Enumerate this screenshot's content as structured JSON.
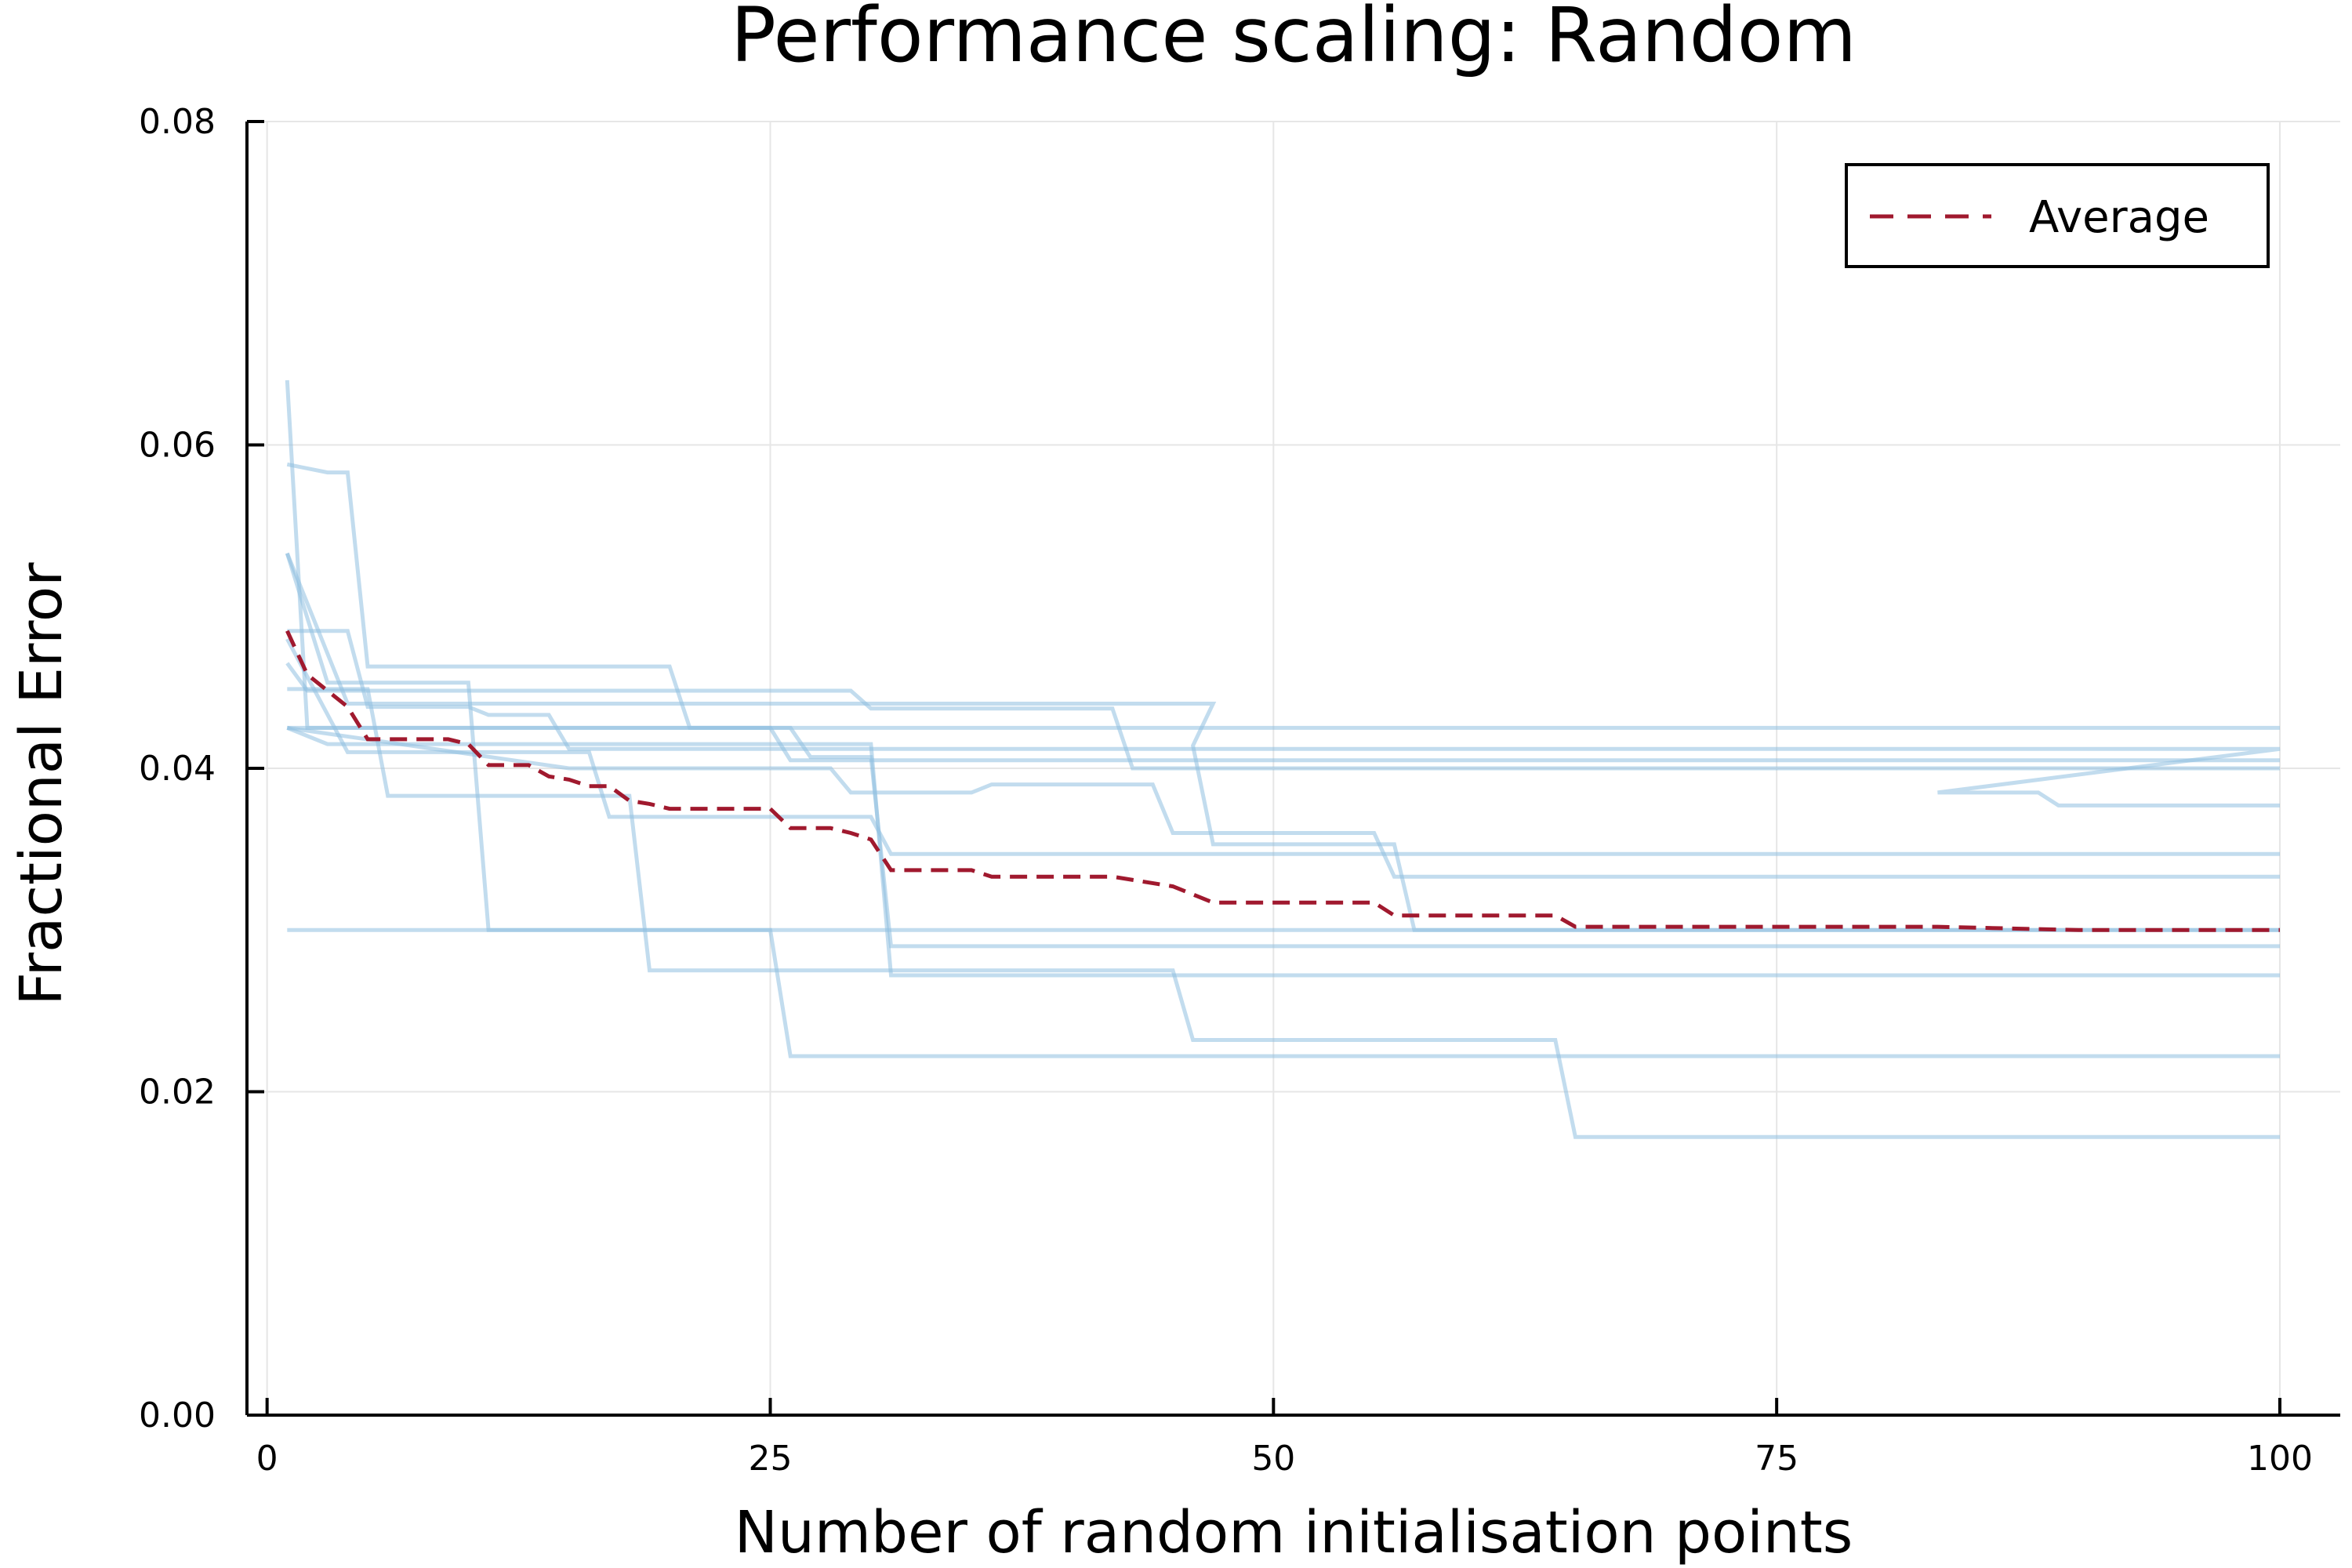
{
  "chart_data": {
    "type": "line",
    "title": "Performance scaling: Random",
    "xlabel": "Number of random initialisation points",
    "ylabel": "Fractional Error",
    "xlim": [
      -1,
      103
    ],
    "ylim": [
      0,
      0.08
    ],
    "xticks": [
      0,
      25,
      50,
      75,
      100
    ],
    "xtick_labels": [
      "0",
      "25",
      "50",
      "75",
      "100"
    ],
    "yticks": [
      0,
      0.02,
      0.04,
      0.06,
      0.08
    ],
    "ytick_labels": [
      "0.00",
      "0.02",
      "0.04",
      "0.06",
      "0.08"
    ],
    "grid": true,
    "legend": {
      "position": "top-right",
      "entries": [
        "Average"
      ]
    },
    "colors": {
      "runs": "#8fbfe0",
      "average": "#a0192e",
      "grid": "#e6e6e6",
      "axis": "#000000"
    },
    "runs": [
      {
        "steps": [
          [
            1,
            0.064
          ],
          [
            2,
            0.0425
          ],
          [
            100,
            0.0425
          ]
        ]
      },
      {
        "steps": [
          [
            1,
            0.0588
          ],
          [
            3,
            0.0583
          ],
          [
            4,
            0.0583
          ],
          [
            5,
            0.0463
          ],
          [
            20,
            0.0463
          ],
          [
            21,
            0.0425
          ],
          [
            25,
            0.0425
          ],
          [
            26,
            0.0405
          ],
          [
            100,
            0.0405
          ]
        ]
      },
      {
        "steps": [
          [
            1,
            0.0533
          ],
          [
            3,
            0.0453
          ],
          [
            10,
            0.0453
          ],
          [
            11,
            0.03
          ],
          [
            100,
            0.03
          ]
        ]
      },
      {
        "steps": [
          [
            1,
            0.0485
          ],
          [
            4,
            0.0485
          ],
          [
            5,
            0.0438
          ],
          [
            10,
            0.0438
          ],
          [
            11,
            0.0433
          ],
          [
            14,
            0.0433
          ],
          [
            15,
            0.0412
          ],
          [
            100,
            0.0412
          ],
          [
            83,
            0.0385
          ],
          [
            88,
            0.0385
          ],
          [
            89,
            0.0377
          ],
          [
            100,
            0.0377
          ]
        ]
      },
      {
        "steps": [
          [
            1,
            0.0465
          ],
          [
            2,
            0.0448
          ],
          [
            29,
            0.0448
          ],
          [
            30,
            0.0437
          ],
          [
            42,
            0.0437
          ],
          [
            43,
            0.04
          ],
          [
            100,
            0.04
          ]
        ]
      },
      {
        "steps": [
          [
            1,
            0.0449
          ],
          [
            5,
            0.0449
          ],
          [
            6,
            0.0383
          ],
          [
            18,
            0.0383
          ],
          [
            19,
            0.0275
          ],
          [
            45,
            0.0275
          ],
          [
            46,
            0.0232
          ],
          [
            64,
            0.0232
          ],
          [
            65,
            0.0172
          ],
          [
            100,
            0.0172
          ]
        ]
      },
      {
        "steps": [
          [
            1,
            0.0425
          ],
          [
            26,
            0.0425
          ],
          [
            27,
            0.0407
          ],
          [
            30,
            0.0407
          ],
          [
            31,
            0.029
          ],
          [
            100,
            0.029
          ]
        ]
      },
      {
        "steps": [
          [
            1,
            0.0425
          ],
          [
            3,
            0.0415
          ],
          [
            30,
            0.0415
          ],
          [
            31,
            0.0272
          ],
          [
            100,
            0.0272
          ]
        ]
      },
      {
        "steps": [
          [
            1,
            0.03
          ],
          [
            25,
            0.03
          ],
          [
            26,
            0.0222
          ],
          [
            100,
            0.0222
          ]
        ]
      },
      {
        "steps": [
          [
            1,
            0.048
          ],
          [
            4,
            0.041
          ],
          [
            16,
            0.041
          ],
          [
            17,
            0.037
          ],
          [
            30,
            0.037
          ],
          [
            31,
            0.0347
          ],
          [
            100,
            0.0347
          ]
        ]
      },
      {
        "steps": [
          [
            1,
            0.0425
          ],
          [
            15,
            0.04
          ],
          [
            28,
            0.04
          ],
          [
            29,
            0.0385
          ],
          [
            35,
            0.0385
          ],
          [
            36,
            0.039
          ],
          [
            44,
            0.039
          ],
          [
            45,
            0.036
          ],
          [
            55,
            0.036
          ],
          [
            56,
            0.0333
          ],
          [
            100,
            0.0333
          ]
        ]
      },
      {
        "steps": [
          [
            1,
            0.0533
          ],
          [
            4,
            0.044
          ],
          [
            47,
            0.044
          ],
          [
            46,
            0.0414
          ],
          [
            47,
            0.0353
          ],
          [
            56,
            0.0353
          ],
          [
            57,
            0.03
          ],
          [
            100,
            0.03
          ]
        ]
      }
    ],
    "series": [
      {
        "name": "Average",
        "x": [
          1,
          2,
          3,
          4,
          5,
          6,
          7,
          8,
          9,
          10,
          11,
          12,
          13,
          14,
          15,
          16,
          17,
          18,
          19,
          20,
          25,
          26,
          27,
          28,
          29,
          30,
          31,
          35,
          36,
          42,
          45,
          47,
          55,
          56,
          64,
          65,
          83,
          90,
          100
        ],
        "y": [
          0.0485,
          0.0458,
          0.0448,
          0.0438,
          0.0418,
          0.0418,
          0.0418,
          0.0418,
          0.0418,
          0.0415,
          0.0402,
          0.0402,
          0.0402,
          0.0395,
          0.0393,
          0.0389,
          0.0389,
          0.038,
          0.0378,
          0.0375,
          0.0375,
          0.0363,
          0.0363,
          0.0363,
          0.036,
          0.0356,
          0.0337,
          0.0337,
          0.0333,
          0.0333,
          0.0327,
          0.0317,
          0.0317,
          0.0309,
          0.0309,
          0.0302,
          0.0302,
          0.03,
          0.03
        ]
      }
    ]
  }
}
